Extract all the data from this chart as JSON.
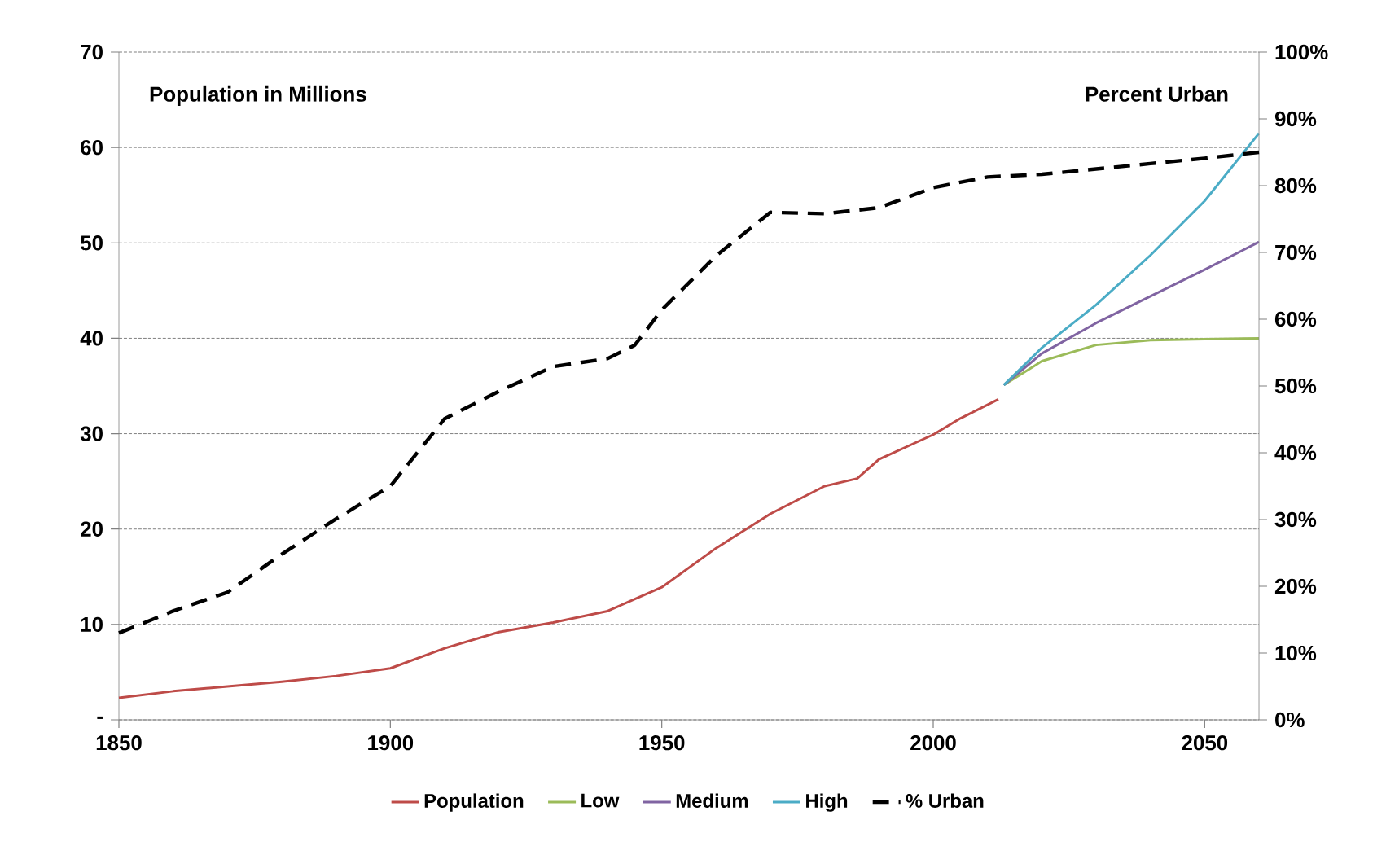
{
  "chart_data": {
    "type": "line",
    "ylabel": "Population in Millions",
    "y2label": "Percent Urban",
    "xlim": [
      1850,
      2060
    ],
    "xticks": [
      1850,
      1900,
      1950,
      2000,
      2050
    ],
    "ylim": [
      0,
      70
    ],
    "yticks": [
      {
        "value": 0,
        "label": "-"
      },
      10,
      20,
      30,
      40,
      50,
      60,
      70
    ],
    "y2lim": [
      0,
      100
    ],
    "y2ticks": [
      {
        "value": 0,
        "label": "0%"
      },
      {
        "value": 10,
        "label": "10%"
      },
      {
        "value": 20,
        "label": "20%"
      },
      {
        "value": 30,
        "label": "30%"
      },
      {
        "value": 40,
        "label": "40%"
      },
      {
        "value": 50,
        "label": "50%"
      },
      {
        "value": 60,
        "label": "60%"
      },
      {
        "value": 70,
        "label": "70%"
      },
      {
        "value": 80,
        "label": "80%"
      },
      {
        "value": 90,
        "label": "90%"
      },
      {
        "value": 100,
        "label": "100%"
      }
    ],
    "grid": "y",
    "legend": "bottom",
    "series": [
      {
        "name": "Population",
        "color": "#be4b48",
        "x": [
          1850,
          1860,
          1870,
          1880,
          1890,
          1900,
          1910,
          1920,
          1930,
          1940,
          1950,
          1960,
          1970,
          1980,
          1986,
          1990,
          2000,
          2005,
          2012
        ],
        "values": [
          2.3,
          3.0,
          3.5,
          4.0,
          4.6,
          5.4,
          7.5,
          9.2,
          10.2,
          11.4,
          13.9,
          18.0,
          21.6,
          24.5,
          25.3,
          27.3,
          29.9,
          31.6,
          33.6
        ]
      },
      {
        "name": "Low",
        "color": "#9bbb59",
        "x": [
          2013,
          2020,
          2030,
          2040,
          2050,
          2060
        ],
        "values": [
          35.1,
          37.6,
          39.3,
          39.8,
          39.9,
          40.0
        ]
      },
      {
        "name": "Medium",
        "color": "#8064a2",
        "x": [
          2013,
          2020,
          2030,
          2040,
          2050,
          2060
        ],
        "values": [
          35.1,
          38.4,
          41.6,
          44.4,
          47.2,
          50.1
        ]
      },
      {
        "name": "High",
        "color": "#4bacc6",
        "x": [
          2013,
          2020,
          2030,
          2040,
          2050,
          2060
        ],
        "values": [
          35.1,
          39.0,
          43.5,
          48.7,
          54.4,
          61.5
        ]
      },
      {
        "name": "% Urban",
        "color": "#000000",
        "axis": "y2",
        "line_style": "dashed",
        "x": [
          1850,
          1860,
          1870,
          1880,
          1890,
          1900,
          1910,
          1920,
          1930,
          1940,
          1945,
          1950,
          1960,
          1970,
          1980,
          1990,
          2000,
          2010,
          2020,
          2030,
          2040,
          2050,
          2060
        ],
        "values": [
          13.0,
          16.3,
          19.1,
          24.8,
          30.1,
          35.0,
          45.1,
          49.2,
          52.9,
          54.1,
          56.1,
          61.4,
          69.5,
          76.0,
          75.8,
          76.7,
          79.7,
          81.3,
          81.7,
          82.5,
          83.3,
          84.1,
          85.0
        ]
      }
    ]
  }
}
